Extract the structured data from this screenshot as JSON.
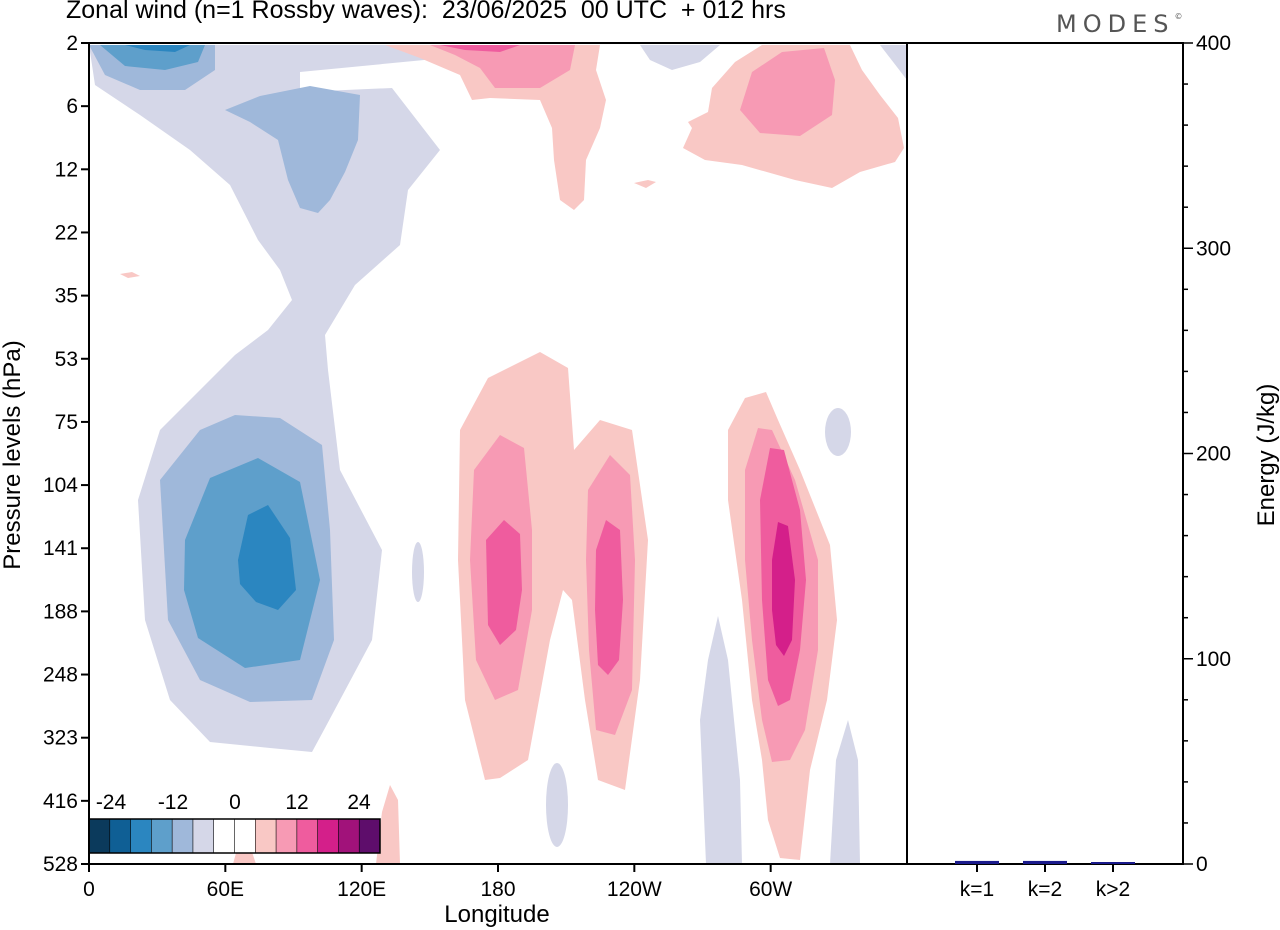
{
  "title": "Zonal wind (n=1 Rossby waves):  23/06/2025  00 UTC  + 012 hrs",
  "logo": "MODES",
  "logo_mark": "©",
  "chart_data": [
    {
      "type": "heatmap",
      "xlabel": "Longitude",
      "ylabel": "Pressure levels (hPa)",
      "x_ticks": [
        "0",
        "60E",
        "120E",
        "180",
        "120W",
        "60W"
      ],
      "x_tick_values": [
        0,
        60,
        120,
        180,
        240,
        300
      ],
      "xlim": [
        0,
        360
      ],
      "y_ticks": [
        "2",
        "6",
        "12",
        "22",
        "35",
        "53",
        "75",
        "104",
        "141",
        "188",
        "248",
        "323",
        "416",
        "528"
      ],
      "colorbar": {
        "labels": [
          "-24",
          "-12",
          "0",
          "12",
          "24"
        ],
        "colors": [
          "#0b3a5c",
          "#0f5f95",
          "#2b86c0",
          "#5e9fcb",
          "#9fb8da",
          "#d5d7e8",
          "#ffffff",
          "#ffffff",
          "#f9c8c5",
          "#f79ab4",
          "#ef5c9e",
          "#d41f8a",
          "#a1127a",
          "#5e0d6b"
        ]
      },
      "features": [
        {
          "sign": "negative",
          "peak_level": 141,
          "lon_center": 78,
          "max_abs": 21
        },
        {
          "sign": "negative",
          "peak_level": 2,
          "lon_center": 30,
          "max_abs": 15
        },
        {
          "sign": "negative",
          "peak_level": 6,
          "lon_center": 100,
          "max_abs": 6
        },
        {
          "sign": "positive",
          "peak_level": 165,
          "lon_center": 182,
          "max_abs": 15
        },
        {
          "sign": "positive",
          "peak_level": 165,
          "lon_center": 229,
          "max_abs": 15
        },
        {
          "sign": "positive",
          "peak_level": 150,
          "lon_center": 304,
          "max_abs": 18
        },
        {
          "sign": "positive",
          "peak_level": 6,
          "lon_center": 307,
          "max_abs": 9
        },
        {
          "sign": "positive",
          "peak_level": 2,
          "lon_center": 170,
          "max_abs": 9
        }
      ]
    },
    {
      "type": "bar",
      "ylabel": "Energy (J/kg)",
      "ylim": [
        0,
        400
      ],
      "y_ticks": [
        "0",
        "100",
        "200",
        "300",
        "400"
      ],
      "y_tick_values": [
        0,
        100,
        200,
        300,
        400
      ],
      "categories": [
        "k=1",
        "k=2",
        "k>2"
      ],
      "values": [
        1.5,
        1.5,
        0.8
      ],
      "bar_color": "#1a1a8c"
    }
  ]
}
